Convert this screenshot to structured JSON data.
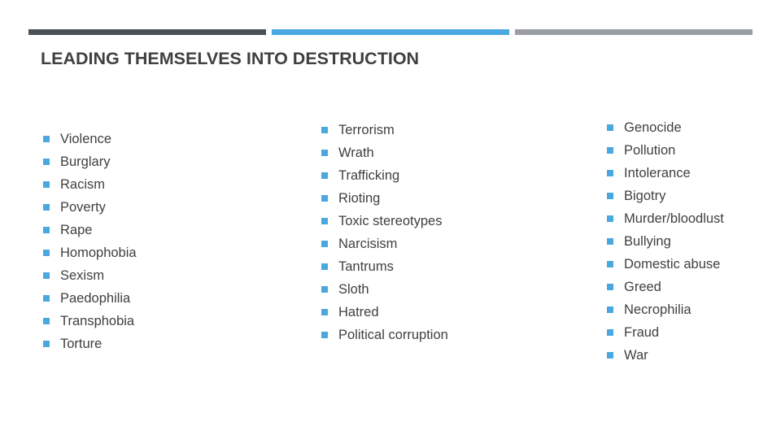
{
  "colors": {
    "bar_dark": "#4a5257",
    "accent": "#4aa8e0",
    "bar_gray": "#9b9fa4",
    "text": "#404040"
  },
  "title": "LEADING THEMSELVES INTO DESTRUCTION",
  "columns": [
    [
      "Violence",
      "Burglary",
      "Racism",
      "Poverty",
      "Rape",
      "Homophobia",
      "Sexism",
      "Paedophilia",
      "Transphobia",
      "Torture"
    ],
    [
      "Terrorism",
      "Wrath",
      "Trafficking",
      "Rioting",
      "Toxic stereotypes",
      "Narcisism",
      "Tantrums",
      "Sloth",
      "Hatred",
      "Political corruption"
    ],
    [
      "Genocide",
      "Pollution",
      "Intolerance",
      "Bigotry",
      "Murder/bloodlust",
      "Bullying",
      "Domestic abuse",
      "Greed",
      "Necrophilia",
      "Fraud",
      "War"
    ]
  ]
}
